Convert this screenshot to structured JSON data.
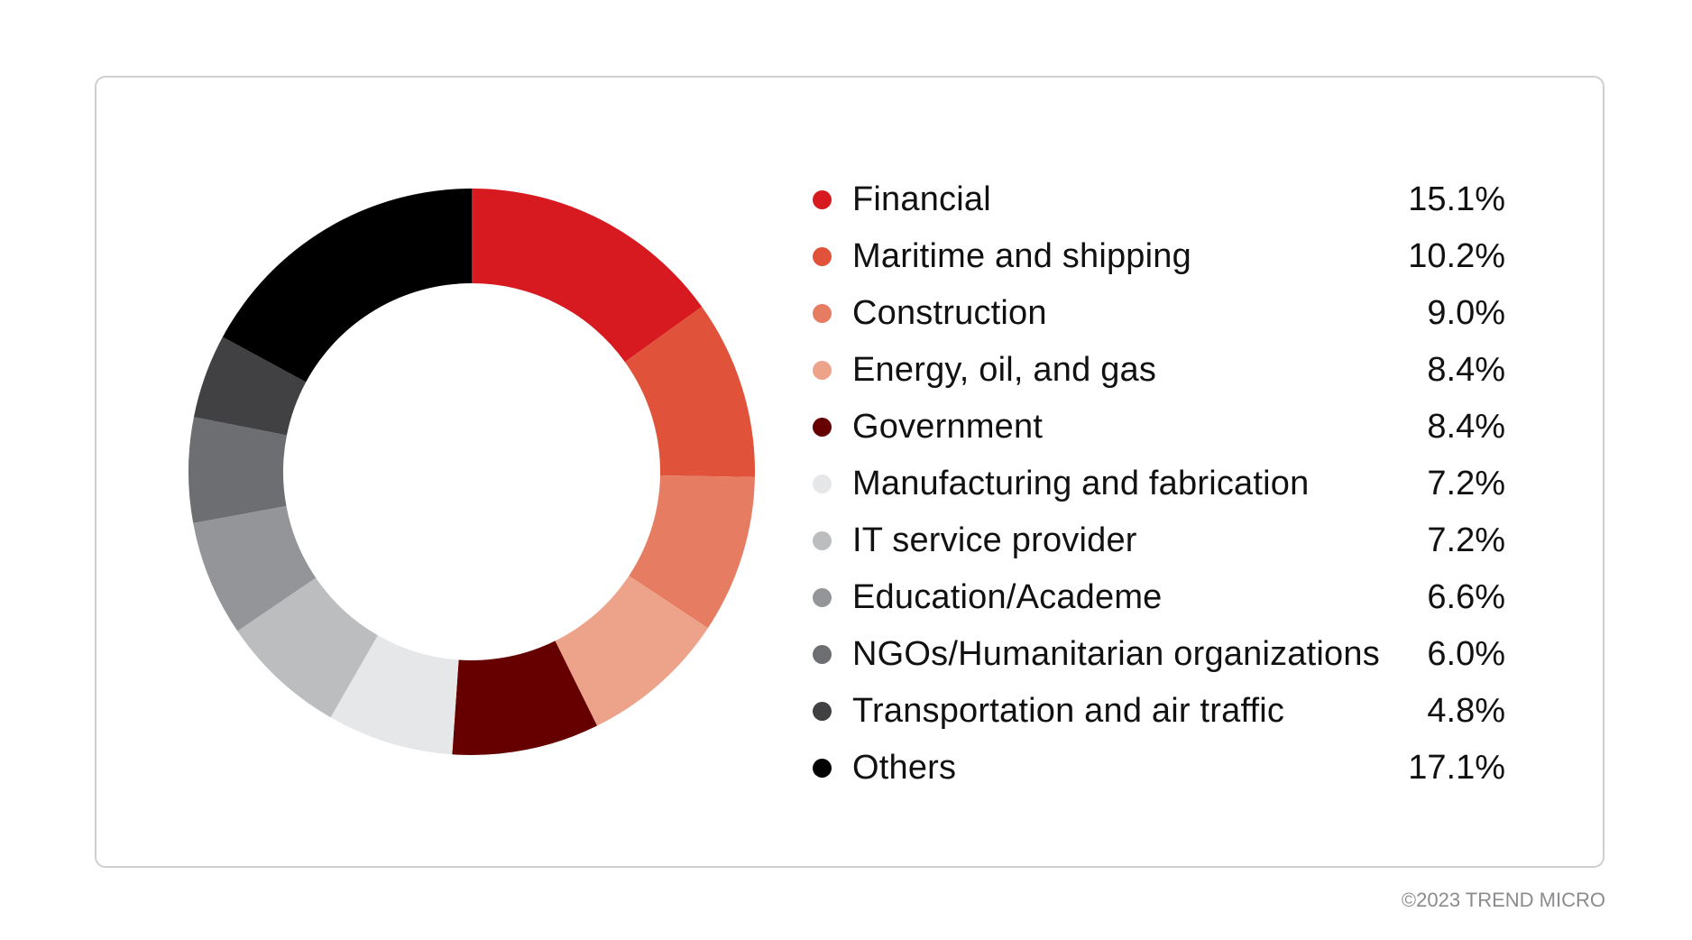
{
  "chart_data": {
    "type": "pie",
    "subtype": "donut",
    "start": "top",
    "direction": "clockwise",
    "legend_position": "right",
    "slices": [
      {
        "label": "Financial",
        "value": 15.1,
        "display": "15.1%",
        "color": "#d71920"
      },
      {
        "label": "Maritime and shipping",
        "value": 10.2,
        "display": "10.2%",
        "color": "#e0533a"
      },
      {
        "label": "Construction",
        "value": 9.0,
        "display": "9.0%",
        "color": "#e67c62"
      },
      {
        "label": "Energy, oil, and gas",
        "value": 8.4,
        "display": "8.4%",
        "color": "#eda389"
      },
      {
        "label": "Government",
        "value": 8.4,
        "display": "8.4%",
        "color": "#660000"
      },
      {
        "label": "Manufacturing and fabrication",
        "value": 7.2,
        "display": "7.2%",
        "color": "#e6e7e8"
      },
      {
        "label": "IT service provider",
        "value": 7.2,
        "display": "7.2%",
        "color": "#bcbdbf"
      },
      {
        "label": "Education/Academe",
        "value": 6.6,
        "display": "6.6%",
        "color": "#939598"
      },
      {
        "label": "NGOs/Humanitarian organizations",
        "value": 6.0,
        "display": "6.0%",
        "color": "#6d6e71"
      },
      {
        "label": "Transportation and air traffic",
        "value": 4.8,
        "display": "4.8%",
        "color": "#414042"
      },
      {
        "label": "Others",
        "value": 17.1,
        "display": "17.1%",
        "color": "#000000"
      }
    ]
  },
  "footer": {
    "copyright": "©2023 TREND MICRO"
  }
}
